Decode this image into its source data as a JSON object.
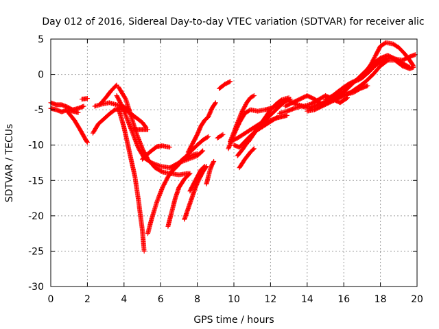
{
  "chart_data": {
    "type": "scatter",
    "title": "Day 012 of 2016, Sidereal Day-to-day VTEC variation (SDTVAR) for receiver alic",
    "xlabel": "GPS time / hours",
    "ylabel": "SDTVAR / TECUs",
    "xlim": [
      0,
      20
    ],
    "ylim": [
      -30,
      5
    ],
    "xticks": [
      0,
      2,
      4,
      6,
      8,
      10,
      12,
      14,
      16,
      18,
      20
    ],
    "yticks": [
      -30,
      -25,
      -20,
      -15,
      -10,
      -5,
      0,
      5
    ],
    "grid": true,
    "marker": "plus",
    "series_color": "#ff0000",
    "series": [
      {
        "points": [
          [
            0.0,
            -4.0
          ],
          [
            0.3,
            -4.3
          ],
          [
            0.6,
            -4.3
          ],
          [
            0.9,
            -4.6
          ],
          [
            1.2,
            -5.0
          ],
          [
            1.5,
            -4.8
          ],
          [
            1.8,
            -4.5
          ]
        ]
      },
      {
        "points": [
          [
            0.0,
            -4.8
          ],
          [
            0.3,
            -5.0
          ],
          [
            0.6,
            -5.3
          ],
          [
            0.9,
            -5.0
          ],
          [
            1.2,
            -5.2
          ],
          [
            1.5,
            -5.4
          ]
        ]
      },
      {
        "points": [
          [
            0.9,
            -5.2
          ],
          [
            1.3,
            -6.5
          ],
          [
            1.6,
            -7.8
          ],
          [
            1.9,
            -9.2
          ],
          [
            2.0,
            -9.6
          ]
        ]
      },
      {
        "points": [
          [
            1.7,
            -3.5
          ],
          [
            2.0,
            -3.4
          ]
        ]
      },
      {
        "points": [
          [
            2.3,
            -8.3
          ],
          [
            2.6,
            -7.0
          ],
          [
            2.9,
            -6.3
          ],
          [
            3.2,
            -5.6
          ],
          [
            3.5,
            -5.0
          ],
          [
            3.8,
            -4.8
          ],
          [
            4.2,
            -5.2
          ],
          [
            4.6,
            -6.0
          ],
          [
            5.0,
            -6.8
          ],
          [
            5.2,
            -7.5
          ]
        ]
      },
      {
        "points": [
          [
            4.5,
            -7.8
          ],
          [
            4.8,
            -7.8
          ],
          [
            5.1,
            -7.8
          ],
          [
            5.3,
            -7.8
          ]
        ]
      },
      {
        "points": [
          [
            2.4,
            -4.5
          ],
          [
            2.8,
            -4.2
          ],
          [
            3.2,
            -4.0
          ],
          [
            3.6,
            -4.3
          ],
          [
            4.0,
            -4.6
          ],
          [
            4.3,
            -5.0
          ]
        ]
      },
      {
        "points": [
          [
            2.7,
            -4.2
          ],
          [
            3.0,
            -3.3
          ],
          [
            3.3,
            -2.3
          ],
          [
            3.6,
            -1.5
          ]
        ]
      },
      {
        "points": [
          [
            3.7,
            -4.8
          ],
          [
            4.0,
            -7.5
          ],
          [
            4.3,
            -11.0
          ],
          [
            4.6,
            -14.5
          ],
          [
            4.8,
            -18.0
          ],
          [
            5.0,
            -22.0
          ],
          [
            5.1,
            -25.0
          ]
        ]
      },
      {
        "points": [
          [
            3.6,
            -3.0
          ],
          [
            3.9,
            -4.5
          ],
          [
            4.2,
            -6.5
          ],
          [
            4.5,
            -8.5
          ],
          [
            4.8,
            -10.5
          ],
          [
            5.1,
            -11.8
          ],
          [
            5.5,
            -12.5
          ],
          [
            6.0,
            -13.0
          ],
          [
            6.5,
            -13.2
          ],
          [
            7.0,
            -12.5
          ],
          [
            7.5,
            -12.0
          ],
          [
            8.0,
            -11.5
          ],
          [
            8.3,
            -10.8
          ]
        ]
      },
      {
        "points": [
          [
            3.7,
            -1.8
          ],
          [
            4.1,
            -3.5
          ],
          [
            4.4,
            -6.0
          ],
          [
            4.7,
            -8.5
          ],
          [
            5.0,
            -10.5
          ],
          [
            5.3,
            -12.0
          ],
          [
            5.7,
            -13.2
          ],
          [
            6.1,
            -13.8
          ],
          [
            6.5,
            -14.0
          ],
          [
            7.0,
            -14.2
          ],
          [
            7.5,
            -14.0
          ]
        ]
      },
      {
        "points": [
          [
            5.0,
            -12.0
          ],
          [
            5.4,
            -11.0
          ],
          [
            5.8,
            -10.2
          ],
          [
            6.1,
            -10.1
          ],
          [
            6.5,
            -10.3
          ]
        ]
      },
      {
        "points": [
          [
            5.3,
            -22.5
          ],
          [
            5.5,
            -20.5
          ],
          [
            5.8,
            -18.0
          ],
          [
            6.1,
            -16.0
          ],
          [
            6.4,
            -14.5
          ],
          [
            6.8,
            -13.0
          ],
          [
            7.2,
            -12.0
          ],
          [
            7.6,
            -11.5
          ],
          [
            8.0,
            -11.2
          ]
        ]
      },
      {
        "points": [
          [
            6.4,
            -21.5
          ],
          [
            6.6,
            -19.5
          ],
          [
            6.8,
            -17.5
          ],
          [
            7.0,
            -16.0
          ],
          [
            7.3,
            -14.8
          ],
          [
            7.6,
            -14.0
          ]
        ]
      },
      {
        "points": [
          [
            6.5,
            -14.0
          ],
          [
            6.9,
            -13.0
          ],
          [
            7.3,
            -11.8
          ],
          [
            7.6,
            -11.0
          ],
          [
            8.0,
            -10.0
          ],
          [
            8.3,
            -9.3
          ],
          [
            8.6,
            -8.8
          ]
        ]
      },
      {
        "points": [
          [
            7.3,
            -20.5
          ],
          [
            7.5,
            -19.0
          ],
          [
            7.7,
            -17.5
          ],
          [
            7.9,
            -16.0
          ],
          [
            8.1,
            -14.8
          ],
          [
            8.3,
            -13.8
          ],
          [
            8.5,
            -13.0
          ]
        ]
      },
      {
        "points": [
          [
            7.6,
            -16.5
          ],
          [
            7.8,
            -15.5
          ],
          [
            8.0,
            -14.5
          ],
          [
            8.2,
            -13.5
          ],
          [
            8.4,
            -13.0
          ]
        ]
      },
      {
        "points": [
          [
            8.5,
            -15.5
          ],
          [
            8.6,
            -14.5
          ],
          [
            8.7,
            -13.5
          ],
          [
            8.8,
            -12.8
          ],
          [
            8.9,
            -12.3
          ]
        ]
      },
      {
        "points": [
          [
            7.5,
            -11.0
          ],
          [
            7.8,
            -9.5
          ],
          [
            8.0,
            -8.5
          ],
          [
            8.2,
            -7.3
          ],
          [
            8.4,
            -6.5
          ],
          [
            8.6,
            -6.0
          ],
          [
            8.8,
            -4.8
          ],
          [
            9.0,
            -4.0
          ]
        ]
      },
      {
        "points": [
          [
            9.2,
            -2.0
          ],
          [
            9.5,
            -1.4
          ],
          [
            9.8,
            -1.0
          ]
        ]
      },
      {
        "points": [
          [
            9.1,
            -9.0
          ],
          [
            9.4,
            -8.5
          ]
        ]
      },
      {
        "points": [
          [
            9.8,
            -9.5
          ],
          [
            10.2,
            -9.0
          ],
          [
            10.5,
            -8.5
          ],
          [
            10.8,
            -8.0
          ],
          [
            11.1,
            -7.5
          ],
          [
            11.4,
            -7.0
          ],
          [
            11.7,
            -6.8
          ],
          [
            12.0,
            -6.5
          ],
          [
            12.3,
            -6.2
          ],
          [
            12.6,
            -6.0
          ],
          [
            12.9,
            -5.8
          ]
        ]
      },
      {
        "points": [
          [
            9.7,
            -10.5
          ],
          [
            10.0,
            -8.5
          ],
          [
            10.3,
            -6.8
          ],
          [
            10.6,
            -5.5
          ],
          [
            10.9,
            -5.0
          ],
          [
            11.3,
            -5.2
          ],
          [
            11.7,
            -5.0
          ],
          [
            12.0,
            -4.8
          ],
          [
            12.3,
            -4.5
          ],
          [
            12.6,
            -4.0
          ],
          [
            13.0,
            -3.5
          ]
        ]
      },
      {
        "points": [
          [
            9.8,
            -9.5
          ],
          [
            10.1,
            -7.5
          ],
          [
            10.4,
            -5.5
          ],
          [
            10.7,
            -4.0
          ],
          [
            10.9,
            -3.3
          ],
          [
            11.1,
            -3.0
          ]
        ]
      },
      {
        "points": [
          [
            10.0,
            -10.0
          ],
          [
            10.3,
            -10.3
          ],
          [
            10.6,
            -9.5
          ],
          [
            10.9,
            -8.7
          ],
          [
            11.2,
            -8.0
          ],
          [
            11.5,
            -7.5
          ],
          [
            11.8,
            -7.0
          ],
          [
            12.1,
            -6.5
          ],
          [
            12.4,
            -6.0
          ]
        ]
      },
      {
        "points": [
          [
            10.2,
            -11.5
          ],
          [
            10.5,
            -10.5
          ],
          [
            10.9,
            -9.0
          ],
          [
            11.3,
            -7.5
          ],
          [
            11.7,
            -6.5
          ],
          [
            12.1,
            -5.5
          ],
          [
            12.5,
            -4.5
          ],
          [
            12.8,
            -3.8
          ],
          [
            13.1,
            -3.5
          ]
        ]
      },
      {
        "points": [
          [
            10.3,
            -13.2
          ],
          [
            10.6,
            -12.0
          ],
          [
            10.9,
            -11.0
          ],
          [
            11.1,
            -10.5
          ]
        ]
      },
      {
        "points": [
          [
            10.8,
            -9.5
          ],
          [
            11.2,
            -8.0
          ],
          [
            11.6,
            -6.5
          ],
          [
            12.0,
            -5.0
          ],
          [
            12.3,
            -4.2
          ],
          [
            12.6,
            -3.6
          ],
          [
            13.0,
            -3.3
          ]
        ]
      },
      {
        "points": [
          [
            12.5,
            -5.5
          ],
          [
            12.9,
            -5.2
          ],
          [
            13.3,
            -4.8
          ],
          [
            13.7,
            -4.5
          ],
          [
            14.1,
            -4.8
          ],
          [
            14.5,
            -4.4
          ],
          [
            14.9,
            -4.0
          ],
          [
            15.3,
            -3.4
          ],
          [
            15.7,
            -3.0
          ],
          [
            16.1,
            -2.8
          ],
          [
            16.5,
            -2.6
          ],
          [
            16.9,
            -2.0
          ],
          [
            17.3,
            -1.6
          ]
        ]
      },
      {
        "points": [
          [
            12.8,
            -4.5
          ],
          [
            13.2,
            -4.0
          ],
          [
            13.6,
            -3.5
          ],
          [
            14.0,
            -3.0
          ],
          [
            14.4,
            -3.5
          ],
          [
            14.8,
            -4.2
          ],
          [
            15.2,
            -3.8
          ],
          [
            15.6,
            -3.2
          ],
          [
            16.0,
            -2.5
          ],
          [
            16.4,
            -1.5
          ],
          [
            16.8,
            -0.5
          ],
          [
            17.2,
            0.5
          ],
          [
            17.6,
            1.5
          ],
          [
            18.0,
            2.3
          ],
          [
            18.4,
            2.7
          ],
          [
            18.8,
            2.2
          ],
          [
            19.2,
            1.6
          ],
          [
            19.6,
            1.0
          ]
        ]
      },
      {
        "points": [
          [
            13.0,
            -3.8
          ],
          [
            13.4,
            -4.2
          ],
          [
            13.8,
            -4.5
          ],
          [
            14.2,
            -4.2
          ],
          [
            14.6,
            -3.6
          ],
          [
            15.0,
            -3.0
          ],
          [
            15.4,
            -3.5
          ],
          [
            15.8,
            -4.0
          ],
          [
            16.2,
            -3.3
          ]
        ]
      },
      {
        "points": [
          [
            14.0,
            -5.2
          ],
          [
            14.4,
            -5.0
          ],
          [
            14.8,
            -4.5
          ],
          [
            15.2,
            -4.0
          ],
          [
            15.6,
            -3.5
          ],
          [
            16.0,
            -3.0
          ],
          [
            16.4,
            -2.5
          ],
          [
            16.8,
            -1.8
          ],
          [
            17.2,
            -1.0
          ],
          [
            17.6,
            0.0
          ],
          [
            18.0,
            1.2
          ],
          [
            18.4,
            2.0
          ],
          [
            18.8,
            2.0
          ],
          [
            19.2,
            1.2
          ],
          [
            19.6,
            0.8
          ],
          [
            19.8,
            1.0
          ]
        ]
      },
      {
        "points": [
          [
            15.5,
            -3.0
          ],
          [
            15.9,
            -2.0
          ],
          [
            16.3,
            -1.3
          ],
          [
            16.7,
            -0.8
          ],
          [
            17.1,
            0.0
          ],
          [
            17.5,
            1.5
          ],
          [
            17.8,
            3.0
          ],
          [
            18.0,
            4.0
          ],
          [
            18.3,
            4.5
          ],
          [
            18.7,
            4.3
          ],
          [
            19.0,
            3.8
          ],
          [
            19.3,
            3.0
          ],
          [
            19.6,
            2.0
          ],
          [
            19.8,
            1.2
          ]
        ]
      },
      {
        "points": [
          [
            16.8,
            -0.8
          ],
          [
            17.2,
            0.3
          ],
          [
            17.6,
            1.0
          ],
          [
            18.0,
            1.8
          ],
          [
            18.4,
            2.3
          ],
          [
            18.8,
            2.2
          ],
          [
            19.2,
            2.0
          ],
          [
            19.6,
            2.5
          ],
          [
            19.9,
            2.8
          ]
        ]
      },
      {
        "points": [
          [
            15.0,
            -3.6
          ],
          [
            15.4,
            -3.0
          ],
          [
            15.8,
            -2.2
          ],
          [
            16.2,
            -1.8
          ],
          [
            16.6,
            -1.0
          ],
          [
            17.0,
            -0.5
          ],
          [
            17.4,
            0.4
          ],
          [
            17.7,
            1.2
          ]
        ]
      }
    ]
  }
}
